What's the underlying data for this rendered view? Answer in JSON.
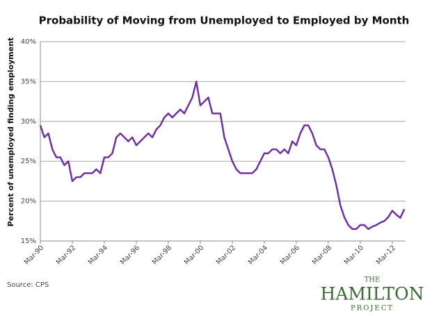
{
  "chart_data": {
    "type": "line",
    "title": "Probability of Moving from Unemployed to Employed by Month",
    "y_label": "Percent of unemployed finding employment",
    "source": "Source: CPS",
    "logo": {
      "top": "THE",
      "main": "HAMILTON",
      "bottom": "PROJECT"
    },
    "x": [
      1990.17,
      1990.42,
      1990.67,
      1990.92,
      1991.17,
      1991.42,
      1991.67,
      1991.92,
      1992.17,
      1992.42,
      1992.67,
      1992.92,
      1993.17,
      1993.42,
      1993.67,
      1993.92,
      1994.17,
      1994.42,
      1994.67,
      1994.92,
      1995.17,
      1995.42,
      1995.67,
      1995.92,
      1996.17,
      1996.42,
      1996.67,
      1996.92,
      1997.17,
      1997.42,
      1997.67,
      1997.92,
      1998.17,
      1998.42,
      1998.67,
      1998.92,
      1999.17,
      1999.42,
      1999.67,
      1999.92,
      2000.17,
      2000.42,
      2000.67,
      2000.92,
      2001.17,
      2001.42,
      2001.67,
      2001.92,
      2002.17,
      2002.42,
      2002.67,
      2002.92,
      2003.17,
      2003.42,
      2003.67,
      2003.92,
      2004.17,
      2004.42,
      2004.67,
      2004.92,
      2005.17,
      2005.42,
      2005.67,
      2005.92,
      2006.17,
      2006.42,
      2006.67,
      2006.92,
      2007.17,
      2007.42,
      2007.67,
      2007.92,
      2008.17,
      2008.42,
      2008.67,
      2008.92,
      2009.17,
      2009.42,
      2009.67,
      2009.92,
      2010.17,
      2010.42,
      2010.67,
      2010.92,
      2011.17,
      2011.42,
      2011.67,
      2011.92,
      2012.17,
      2012.42,
      2012.67,
      2012.92
    ],
    "series": [
      {
        "name": "Probability",
        "color": "#7030a0",
        "values": [
          29.5,
          28,
          28.5,
          26.5,
          25.5,
          25.5,
          24.5,
          25,
          22.5,
          23,
          23,
          23.5,
          23.5,
          23.5,
          24,
          23.5,
          25.5,
          25.5,
          26,
          28,
          28.5,
          28,
          27.5,
          28,
          27,
          27.5,
          28,
          28.5,
          28,
          29,
          29.5,
          30.5,
          31,
          30.5,
          31,
          31.5,
          31,
          32,
          33,
          35,
          32,
          32.5,
          33,
          31,
          31,
          31,
          28,
          26.5,
          25,
          24,
          23.5,
          23.5,
          23.5,
          23.5,
          24,
          25,
          26,
          26,
          26.5,
          26.5,
          26,
          26.5,
          26,
          27.5,
          27,
          28.5,
          29.5,
          29.5,
          28.5,
          27,
          26.5,
          26.5,
          25.5,
          24,
          22,
          19.5,
          18,
          17,
          16.5,
          16.5,
          17,
          17,
          16.5,
          16.8,
          17,
          17.3,
          17.5,
          18,
          18.8,
          18.3,
          17.9,
          19
        ]
      }
    ],
    "xlim": [
      1990.17,
      2013.0
    ],
    "xticks": [
      {
        "value": 1990.17,
        "label": "Mar-90"
      },
      {
        "value": 1992.17,
        "label": "Mar-92"
      },
      {
        "value": 1994.17,
        "label": "Mar-94"
      },
      {
        "value": 1996.17,
        "label": "Mar-96"
      },
      {
        "value": 1998.17,
        "label": "Mar-98"
      },
      {
        "value": 2000.17,
        "label": "Mar-00"
      },
      {
        "value": 2002.17,
        "label": "Mar-02"
      },
      {
        "value": 2004.17,
        "label": "Mar-04"
      },
      {
        "value": 2006.17,
        "label": "Mar-06"
      },
      {
        "value": 2008.17,
        "label": "Mar-08"
      },
      {
        "value": 2010.17,
        "label": "Mar-10"
      },
      {
        "value": 2012.17,
        "label": "Mar-12"
      }
    ],
    "ylim": [
      15,
      40
    ],
    "yticks": [
      {
        "value": 15,
        "label": "15%"
      },
      {
        "value": 20,
        "label": "20%"
      },
      {
        "value": 25,
        "label": "25%"
      },
      {
        "value": 30,
        "label": "30%"
      },
      {
        "value": 35,
        "label": "35%"
      },
      {
        "value": 40,
        "label": "40%"
      }
    ],
    "grid": true
  }
}
